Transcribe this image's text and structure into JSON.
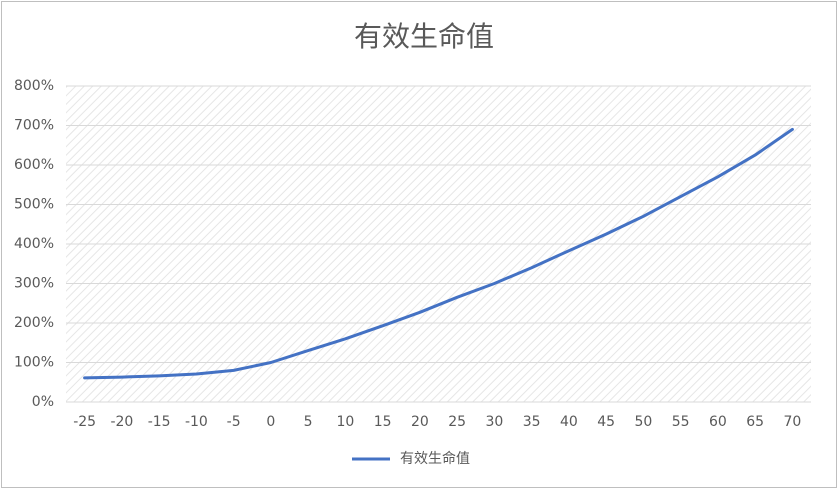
{
  "chart_data": {
    "type": "line",
    "title": "有效生命值",
    "categories": [
      "-25",
      "-20",
      "-15",
      "-10",
      "-5",
      "0",
      "5",
      "10",
      "15",
      "20",
      "25",
      "30",
      "35",
      "40",
      "45",
      "50",
      "55",
      "60",
      "65",
      "70"
    ],
    "series": [
      {
        "name": "有效生命值",
        "color": "#4472c4",
        "values": [
          61,
          63,
          66,
          71,
          80,
          100,
          130,
          160,
          193,
          227,
          265,
          300,
          340,
          383,
          425,
          470,
          520,
          570,
          625,
          690
        ]
      }
    ],
    "ylim": [
      0,
      800
    ],
    "yticks": [
      {
        "value": 0,
        "label": "0%"
      },
      {
        "value": 100,
        "label": "100%"
      },
      {
        "value": 200,
        "label": "200%"
      },
      {
        "value": 300,
        "label": "300%"
      },
      {
        "value": 400,
        "label": "400%"
      },
      {
        "value": 500,
        "label": "500%"
      },
      {
        "value": 600,
        "label": "600%"
      },
      {
        "value": 700,
        "label": "700%"
      },
      {
        "value": 800,
        "label": "800%"
      }
    ],
    "grid": true,
    "legend": "bottom"
  }
}
